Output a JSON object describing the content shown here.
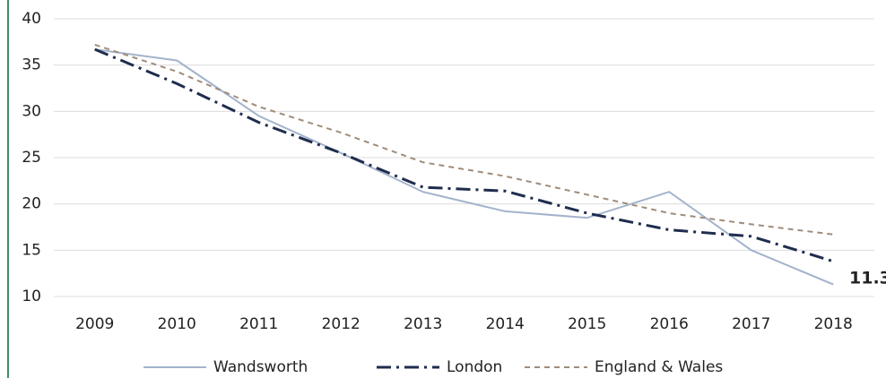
{
  "chart_data": {
    "type": "line",
    "categories": [
      "2009",
      "2010",
      "2011",
      "2012",
      "2013",
      "2014",
      "2015",
      "2016",
      "2017",
      "2018"
    ],
    "series": [
      {
        "name": "Wandsworth",
        "color": "#a3b3cc",
        "dash": "solid",
        "values": [
          36.7,
          35.5,
          29.5,
          25.5,
          21.3,
          19.2,
          18.5,
          21.3,
          15,
          11.3
        ]
      },
      {
        "name": "London",
        "color": "#1f2d4d",
        "dash": "dashdot",
        "values": [
          36.7,
          33,
          28.8,
          25.5,
          21.8,
          21.4,
          19,
          17.2,
          16.5,
          13.8
        ]
      },
      {
        "name": "England & Wales",
        "color": "#a08c7a",
        "dash": "dashed",
        "values": [
          37.2,
          34.3,
          30.5,
          27.7,
          24.5,
          23,
          21,
          19,
          17.8,
          16.7
        ]
      }
    ],
    "ylim": [
      10,
      40
    ],
    "yticks": [
      10,
      15,
      20,
      25,
      30,
      35,
      40
    ],
    "grid": true,
    "legend": "bottom"
  }
}
